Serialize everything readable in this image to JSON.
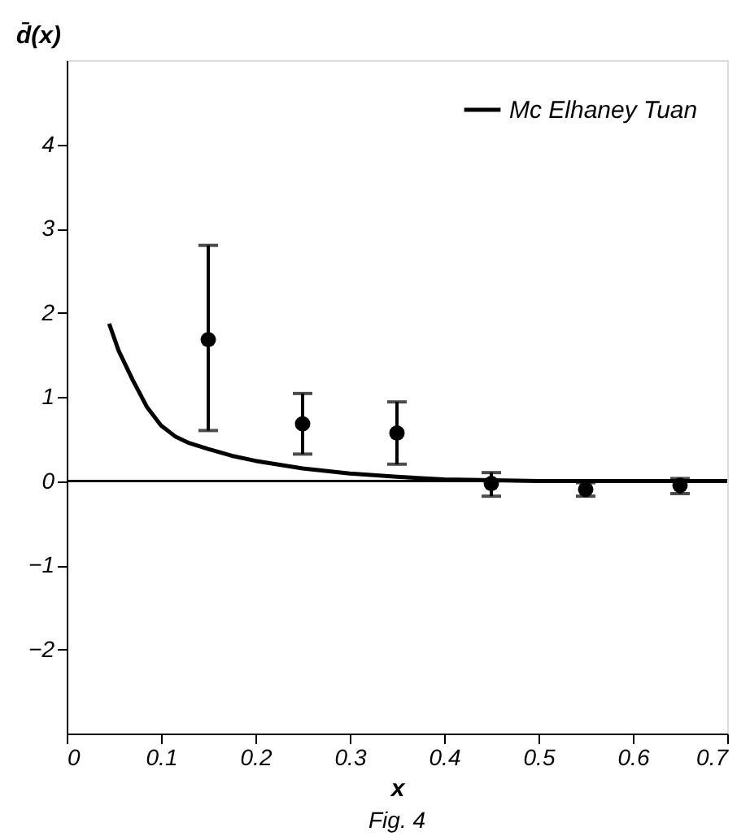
{
  "chart_data": {
    "type": "line",
    "xlabel": "x",
    "ylabel": "d̄(x)",
    "xlim": [
      0,
      0.7
    ],
    "xticks": [
      0,
      0.1,
      0.2,
      0.3,
      0.4,
      0.5,
      0.6,
      0.7
    ],
    "ylim": [
      -3,
      5
    ],
    "yticks": [
      -2,
      -1,
      0,
      1,
      2,
      3,
      4
    ],
    "grid": false,
    "legend": "top right",
    "series": [
      {
        "name": "Mc Elhaney Tuan",
        "color": "#000000",
        "line_style": "solid",
        "marker": "none",
        "x": [
          0.045,
          0.055,
          0.07,
          0.085,
          0.1,
          0.115,
          0.13,
          0.15,
          0.175,
          0.2,
          0.25,
          0.3,
          0.35,
          0.4,
          0.45,
          0.5,
          0.6,
          0.7
        ],
        "values": [
          1.87,
          1.55,
          1.2,
          0.88,
          0.66,
          0.53,
          0.45,
          0.38,
          0.3,
          0.24,
          0.15,
          0.09,
          0.05,
          0.02,
          0.01,
          0.0,
          0.0,
          0.0
        ]
      },
      {
        "type": "scatter",
        "color": "#000000",
        "marker": "circle",
        "x": [
          0.15,
          0.25,
          0.35,
          0.45,
          0.55,
          0.65
        ],
        "values": [
          1.68,
          0.68,
          0.57,
          -0.03,
          -0.1,
          -0.05
        ],
        "errors": [
          [
            0.6,
            2.8
          ],
          [
            0.32,
            1.04
          ],
          [
            0.2,
            0.94
          ],
          [
            -0.18,
            0.1
          ],
          [
            -0.18,
            -0.02
          ],
          [
            -0.15,
            0.03
          ]
        ]
      }
    ],
    "ref_lines": [
      {
        "axis": "y",
        "value": 0,
        "color": "#000000",
        "line_style": "solid"
      }
    ],
    "annotations": [
      "Fig. 4"
    ]
  }
}
